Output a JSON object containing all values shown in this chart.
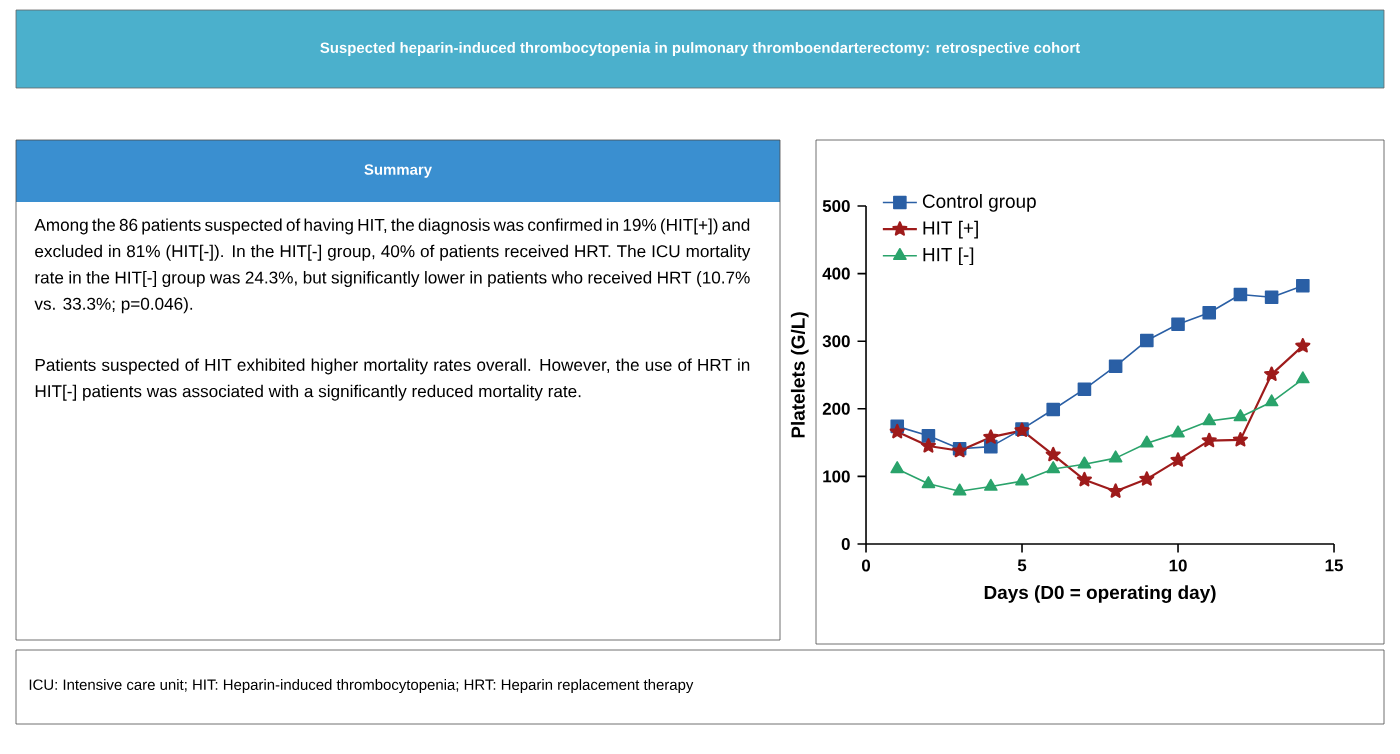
{
  "chart_data": [
    {
      "type": "other",
      "title": "Suspected heparin-induced thrombocytopenia in pulmonary thromboendarterectomy: retrospective cohort",
      "subtitle": "Summary",
      "annotations": [
        "Among the 86 patients suspected of having HIT, the diagnosis was confirmed in 19% (HIT[+]) and excluded in 81% (HIT[-]). In the HIT[-] group, 40% of patients received HRT. The ICU mortality rate in the HIT[-] group was 24.3%, but significantly lower in patients who received HRT (10.7% vs. 33.3%; p=0.046).",
        "Patients suspected of HIT exhibited higher mortality rates overall. However, the use of HRT in HIT[-] patients was associated with a significantly reduced mortality rate.",
        "ICU: Intensive care unit; HIT: Heparin-induced thrombocytopenia; HRT: Heparin replacement therapy"
      ]
    },
    {
      "type": "line",
      "xlabel": "Days (D0 = operating day)",
      "ylabel": "Platelets (G/L)",
      "x": [
        1,
        2,
        3,
        4,
        5,
        6,
        7,
        8,
        9,
        10,
        11,
        12,
        13,
        14
      ],
      "xlim": [
        0,
        15
      ],
      "xticks": [
        0,
        5,
        10,
        15
      ],
      "ylim": [
        0,
        500
      ],
      "yticks": [
        0,
        100,
        200,
        300,
        400,
        500
      ],
      "legend": "top left",
      "grid": false,
      "series": [
        {
          "name": "Control group",
          "color": "#2a5fa5",
          "marker": "square",
          "values": [
            174,
            160,
            141,
            144,
            170,
            199,
            229,
            263,
            301,
            325,
            342,
            369,
            365,
            382
          ]
        },
        {
          "name": "HIT [+]",
          "color": "#9e1b1b",
          "marker": "star",
          "values": [
            166,
            145,
            138,
            158,
            168,
            132,
            95,
            78,
            96,
            124,
            153,
            154,
            251,
            293
          ]
        },
        {
          "name": "HIT [-]",
          "color": "#2aa36b",
          "marker": "triangle",
          "values": [
            111,
            89,
            78,
            85,
            93,
            111,
            118,
            127,
            149,
            164,
            182,
            188,
            210,
            244
          ]
        }
      ]
    }
  ]
}
